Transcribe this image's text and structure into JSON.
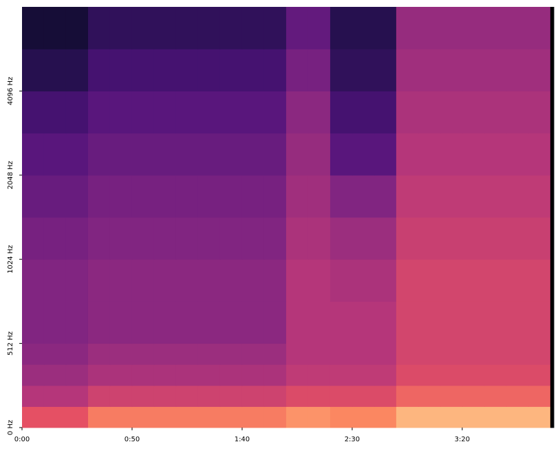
{
  "chart_data": {
    "type": "spectrogram",
    "colormap": "magma",
    "zlim": [
      -80,
      0
    ],
    "yscale": "symlog",
    "linthresh": 512,
    "xlim": [
      0,
      241.6
    ],
    "ylim": [
      0,
      8192
    ],
    "xticks": [
      {
        "value": 0,
        "label": "0:00"
      },
      {
        "value": 50,
        "label": "0:50"
      },
      {
        "value": 100,
        "label": "1:40"
      },
      {
        "value": 150,
        "label": "2:30"
      },
      {
        "value": 200,
        "label": "3:20"
      }
    ],
    "yticks": [
      {
        "value": 0,
        "label": "0 Hz"
      },
      {
        "value": 512,
        "label": "512 Hz"
      },
      {
        "value": 1024,
        "label": "1024 Hz"
      },
      {
        "value": 2048,
        "label": "2048 Hz"
      },
      {
        "value": 4096,
        "label": "4096 Hz"
      }
    ],
    "xbins": [
      0,
      10,
      20,
      30,
      40,
      50,
      60,
      70,
      80,
      90,
      100,
      110,
      120,
      130,
      140,
      150,
      160,
      170,
      180,
      190,
      200,
      210,
      220,
      230,
      240,
      241.6
    ],
    "ybins": [
      0,
      128,
      256,
      384,
      512,
      724,
      1024,
      1448,
      2048,
      2896,
      4096,
      5793,
      8192
    ],
    "z": [
      [
        -30,
        -30,
        -30,
        -22,
        -22,
        -22,
        -22,
        -22,
        -22,
        -22,
        -22,
        -22,
        -18,
        -18,
        -20,
        -20,
        -20,
        -12,
        -12,
        -12,
        -12,
        -12,
        -12,
        -12,
        -80
      ],
      [
        -40,
        -40,
        -40,
        -35,
        -35,
        -35,
        -35,
        -35,
        -35,
        -35,
        -35,
        -35,
        -32,
        -32,
        -32,
        -32,
        -32,
        -26,
        -26,
        -26,
        -26,
        -26,
        -26,
        -26,
        -80
      ],
      [
        -45,
        -45,
        -45,
        -42,
        -42,
        -42,
        -42,
        -42,
        -42,
        -42,
        -42,
        -42,
        -38,
        -38,
        -38,
        -38,
        -38,
        -32,
        -32,
        -32,
        -32,
        -32,
        -32,
        -32,
        -80
      ],
      [
        -48,
        -48,
        -48,
        -45,
        -45,
        -45,
        -45,
        -45,
        -45,
        -45,
        -45,
        -45,
        -40,
        -40,
        -40,
        -40,
        -40,
        -34,
        -34,
        -34,
        -34,
        -34,
        -34,
        -34,
        -80
      ],
      [
        -50,
        -50,
        -50,
        -48,
        -48,
        -48,
        -48,
        -48,
        -48,
        -48,
        -48,
        -48,
        -40,
        -40,
        -40,
        -40,
        -40,
        -34,
        -34,
        -34,
        -34,
        -34,
        -34,
        -34,
        -80
      ],
      [
        -50,
        -50,
        -50,
        -48,
        -48,
        -48,
        -48,
        -48,
        -48,
        -48,
        -48,
        -48,
        -40,
        -40,
        -42,
        -42,
        -42,
        -34,
        -34,
        -34,
        -34,
        -34,
        -34,
        -34,
        -80
      ],
      [
        -52,
        -52,
        -52,
        -50,
        -50,
        -50,
        -50,
        -50,
        -50,
        -50,
        -50,
        -50,
        -42,
        -42,
        -45,
        -45,
        -45,
        -36,
        -36,
        -36,
        -36,
        -36,
        -36,
        -36,
        -80
      ],
      [
        -55,
        -55,
        -55,
        -52,
        -52,
        -52,
        -52,
        -52,
        -52,
        -52,
        -52,
        -52,
        -44,
        -44,
        -50,
        -50,
        -50,
        -38,
        -38,
        -38,
        -38,
        -38,
        -38,
        -38,
        -80
      ],
      [
        -58,
        -58,
        -58,
        -55,
        -55,
        -55,
        -55,
        -55,
        -55,
        -55,
        -55,
        -55,
        -46,
        -46,
        -58,
        -58,
        -58,
        -40,
        -40,
        -40,
        -40,
        -40,
        -40,
        -40,
        -80
      ],
      [
        -62,
        -62,
        -62,
        -58,
        -58,
        -58,
        -58,
        -58,
        -58,
        -58,
        -58,
        -58,
        -48,
        -48,
        -62,
        -62,
        -62,
        -42,
        -42,
        -42,
        -42,
        -42,
        -42,
        -42,
        -80
      ],
      [
        -68,
        -68,
        -68,
        -62,
        -62,
        -62,
        -62,
        -62,
        -62,
        -62,
        -62,
        -62,
        -52,
        -52,
        -66,
        -66,
        -66,
        -44,
        -44,
        -44,
        -44,
        -44,
        -44,
        -44,
        -80
      ],
      [
        -72,
        -72,
        -72,
        -66,
        -66,
        -66,
        -66,
        -66,
        -66,
        -66,
        -66,
        -66,
        -56,
        -56,
        -68,
        -68,
        -68,
        -46,
        -46,
        -46,
        -46,
        -46,
        -46,
        -46,
        -80
      ]
    ]
  }
}
